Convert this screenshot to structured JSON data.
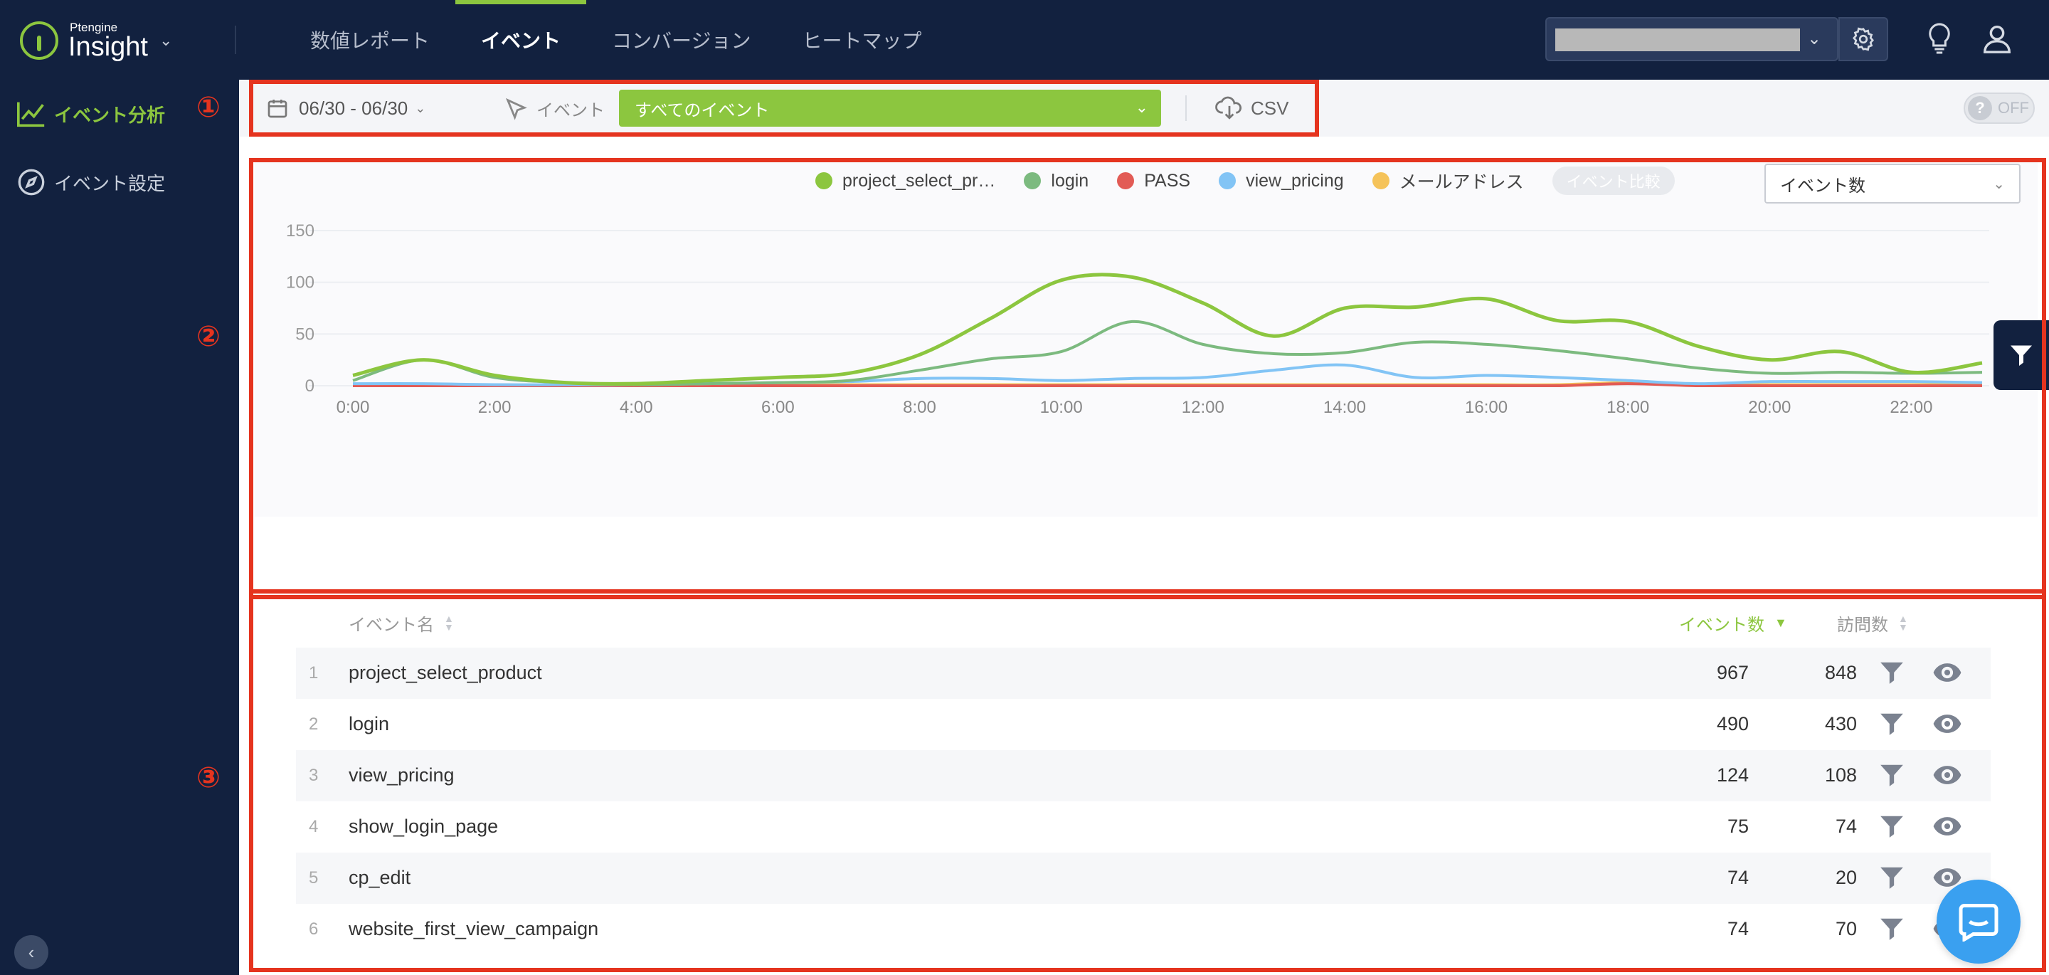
{
  "brand": {
    "small": "Ptengine",
    "name": "Insight"
  },
  "topnav": [
    {
      "label": "数値レポート",
      "active": false
    },
    {
      "label": "イベント",
      "active": true
    },
    {
      "label": "コンバージョン",
      "active": false
    },
    {
      "label": "ヒートマップ",
      "active": false
    }
  ],
  "sidebar": {
    "items": [
      {
        "label": "イベント分析",
        "icon": "line-chart-icon",
        "active": true
      },
      {
        "label": "イベント設定",
        "icon": "compass-icon",
        "active": false
      }
    ]
  },
  "toolbar": {
    "date_range": "06/30 - 06/30",
    "event_label": "イベント",
    "event_selected": "すべてのイベント",
    "csv_label": "CSV",
    "toggle_label": "OFF",
    "toggle_icon_text": "?"
  },
  "annotations": [
    "①",
    "②",
    "③"
  ],
  "chart": {
    "metric_selected": "イベント数",
    "compare_label": "イベント比較"
  },
  "chart_data": {
    "type": "line",
    "x": [
      "0:00",
      "1:00",
      "2:00",
      "3:00",
      "4:00",
      "5:00",
      "6:00",
      "7:00",
      "8:00",
      "9:00",
      "10:00",
      "11:00",
      "12:00",
      "13:00",
      "14:00",
      "15:00",
      "16:00",
      "17:00",
      "18:00",
      "19:00",
      "20:00",
      "21:00",
      "22:00",
      "23:00"
    ],
    "xticks": [
      "0:00",
      "2:00",
      "4:00",
      "6:00",
      "8:00",
      "10:00",
      "12:00",
      "14:00",
      "16:00",
      "18:00",
      "20:00",
      "22:00"
    ],
    "yticks": [
      0,
      50,
      100,
      150
    ],
    "ylim": [
      0,
      150
    ],
    "grid": true,
    "legend_position": "top",
    "series": [
      {
        "name": "project_select_pr…",
        "color": "#8cc63f",
        "values": [
          10,
          25,
          10,
          3,
          2,
          5,
          8,
          12,
          30,
          65,
          102,
          105,
          80,
          48,
          75,
          76,
          84,
          63,
          62,
          38,
          25,
          33,
          13,
          22
        ]
      },
      {
        "name": "login",
        "color": "#7cba7f",
        "values": [
          5,
          25,
          8,
          3,
          1,
          2,
          3,
          5,
          15,
          26,
          33,
          62,
          40,
          31,
          32,
          42,
          40,
          34,
          26,
          17,
          12,
          13,
          12,
          13
        ]
      },
      {
        "name": "PASS",
        "color": "#e25b55",
        "values": [
          0,
          0,
          0,
          0,
          0,
          0,
          0,
          0,
          0,
          0,
          0,
          0,
          0,
          0,
          0,
          0,
          0,
          0,
          2,
          0,
          0,
          0,
          0,
          0
        ]
      },
      {
        "name": "view_pricing",
        "color": "#82c4f5",
        "values": [
          2,
          2,
          1,
          1,
          1,
          2,
          3,
          4,
          7,
          7,
          5,
          7,
          8,
          15,
          20,
          8,
          10,
          8,
          5,
          2,
          4,
          4,
          4,
          3
        ]
      },
      {
        "name": "メールアドレス",
        "color": "#f5c35a",
        "values": [
          1,
          1,
          1,
          0,
          0,
          0,
          1,
          1,
          1,
          1,
          1,
          1,
          1,
          1,
          1,
          1,
          1,
          1,
          3,
          1,
          1,
          1,
          1,
          1
        ]
      }
    ]
  },
  "table": {
    "headers": {
      "name": "イベント名",
      "events": "イベント数",
      "visits": "訪問数"
    },
    "rows": [
      {
        "idx": "1",
        "name": "project_select_product",
        "events": "967",
        "visits": "848"
      },
      {
        "idx": "2",
        "name": "login",
        "events": "490",
        "visits": "430"
      },
      {
        "idx": "3",
        "name": "view_pricing",
        "events": "124",
        "visits": "108"
      },
      {
        "idx": "4",
        "name": "show_login_page",
        "events": "75",
        "visits": "74"
      },
      {
        "idx": "5",
        "name": "cp_edit",
        "events": "74",
        "visits": "20"
      },
      {
        "idx": "6",
        "name": "website_first_view_campaign",
        "events": "74",
        "visits": "70"
      }
    ]
  }
}
